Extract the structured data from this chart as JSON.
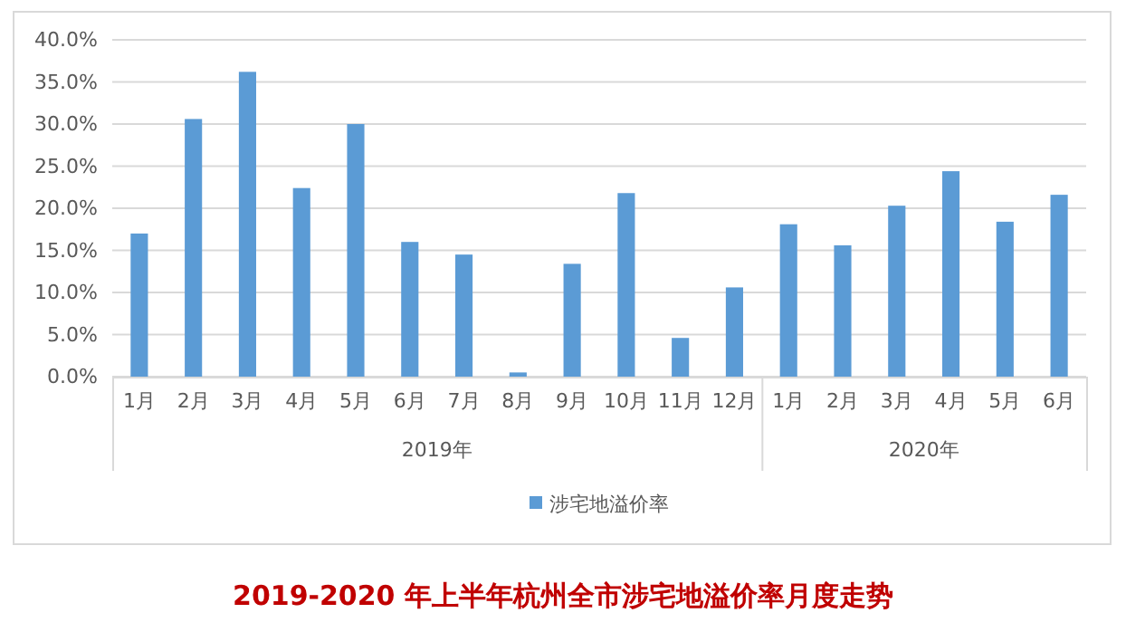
{
  "chart_data": {
    "type": "bar",
    "title": "2019-2020 年上半年杭州全市涉宅地溢价率月度走势",
    "categories": [
      "1月",
      "2月",
      "3月",
      "4月",
      "5月",
      "6月",
      "7月",
      "8月",
      "9月",
      "10月",
      "11月",
      "12月",
      "1月",
      "2月",
      "3月",
      "4月",
      "5月",
      "6月"
    ],
    "series": [
      {
        "name": "涉宅地溢价率",
        "color": "#5b9bd5",
        "values": [
          17.0,
          30.6,
          36.2,
          22.4,
          30.0,
          16.0,
          14.5,
          0.5,
          13.4,
          21.8,
          4.6,
          10.6,
          18.1,
          15.6,
          20.3,
          24.4,
          18.4,
          21.6
        ]
      }
    ],
    "annotations": [
      "2019年",
      "2020年"
    ],
    "ylim": [
      0,
      40
    ],
    "yticks": [
      {
        "value": 0,
        "label": "0.0%"
      },
      {
        "value": 5,
        "label": "5.0%"
      },
      {
        "value": 10,
        "label": "10.0%"
      },
      {
        "value": 15,
        "label": "15.0%"
      },
      {
        "value": 20,
        "label": "20.0%"
      },
      {
        "value": 25,
        "label": "25.0%"
      },
      {
        "value": 30,
        "label": "30.0%"
      },
      {
        "value": 35,
        "label": "35.0%"
      },
      {
        "value": 40,
        "label": "40.0%"
      }
    ],
    "grid": "y",
    "legend": "bottom"
  }
}
